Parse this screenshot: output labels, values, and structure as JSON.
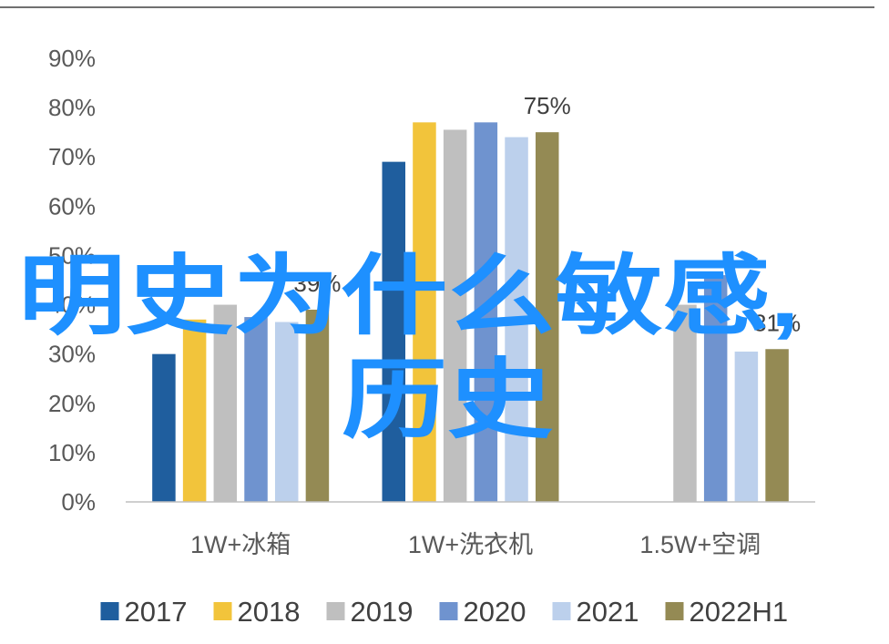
{
  "chart_data": {
    "type": "bar",
    "categories": [
      "1W+冰箱",
      "1W+洗衣机",
      "1.5W+空调"
    ],
    "series": [
      {
        "name": "2017",
        "color": "#1f5e9e",
        "values": [
          30,
          69,
          null
        ]
      },
      {
        "name": "2018",
        "color": "#f2c43b",
        "values": [
          37,
          77,
          null
        ]
      },
      {
        "name": "2019",
        "color": "#bfbfbf",
        "values": [
          40,
          75.5,
          40
        ]
      },
      {
        "name": "2020",
        "color": "#6f93cf",
        "values": [
          37.5,
          77,
          46
        ]
      },
      {
        "name": "2021",
        "color": "#bcd0ec",
        "values": [
          36.5,
          74,
          30.5
        ]
      },
      {
        "name": "2022H1",
        "color": "#948a54",
        "values": [
          39,
          75,
          31
        ]
      }
    ],
    "data_labels": [
      {
        "text": "39%",
        "category": 0,
        "series": 5
      },
      {
        "text": "75%",
        "category": 1,
        "series": 5
      },
      {
        "text": "31%",
        "category": 2,
        "series": 5
      }
    ],
    "y_ticks": [
      "0%",
      "10%",
      "20%",
      "30%",
      "40%",
      "50%",
      "60%",
      "70%",
      "80%",
      "90%"
    ],
    "ylim": [
      0,
      90
    ],
    "grid": false,
    "legend": "bottom"
  },
  "overlay": {
    "line1": "明史为什么敏感,",
    "line2": "历史",
    "color": "#1e90ff"
  }
}
